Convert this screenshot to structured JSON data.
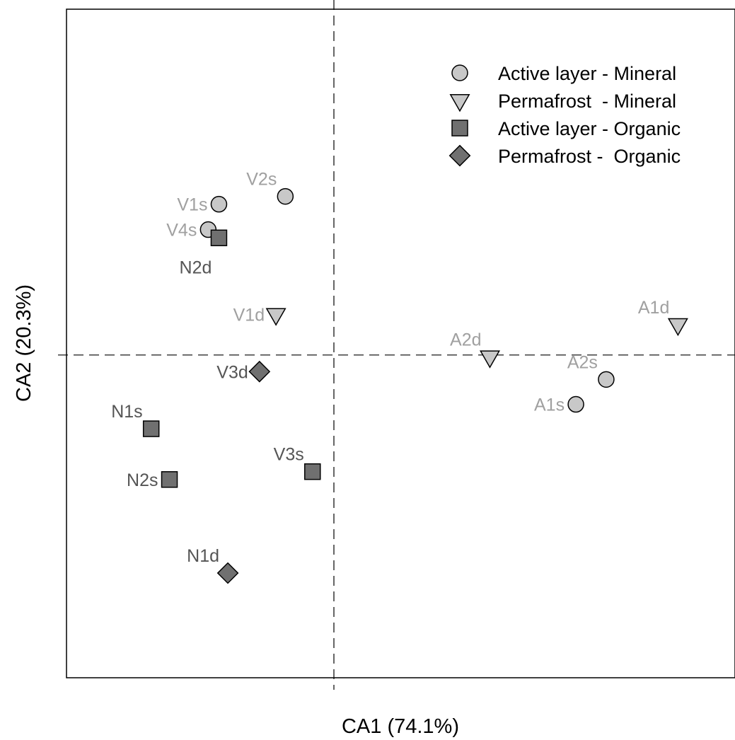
{
  "chart_data": {
    "type": "scatter",
    "title": "",
    "xlabel": "CA1 (74.1%)",
    "ylabel": "CA2 (20.3%)",
    "xlim": [
      -0.6,
      0.9
    ],
    "ylim": [
      -0.7,
      0.75
    ],
    "reference_lines": {
      "x": 0,
      "y": 0,
      "style": "dashed"
    },
    "grid": false,
    "legend_position": "top-right",
    "groups": [
      {
        "id": "al_min",
        "name": "Active layer - Mineral",
        "marker": "circle",
        "color": "#c8c8c8",
        "label_color": "#a0a0a0"
      },
      {
        "id": "pf_min",
        "name": "Permafrost  - Mineral",
        "marker": "triangle-down",
        "color": "#c8c8c8",
        "label_color": "#a0a0a0"
      },
      {
        "id": "al_org",
        "name": "Active layer - Organic",
        "marker": "square",
        "color": "#707070",
        "label_color": "#555555"
      },
      {
        "id": "pf_org",
        "name": "Permafrost -  Organic",
        "marker": "diamond",
        "color": "#707070",
        "label_color": "#555555"
      }
    ],
    "points": [
      {
        "label": "V1s",
        "group": "al_min",
        "x": -0.258,
        "y": 0.327,
        "label_pos": "left"
      },
      {
        "label": "V2s",
        "group": "al_min",
        "x": -0.109,
        "y": 0.344,
        "label_pos": "upper-left"
      },
      {
        "label": "V4s",
        "group": "al_min",
        "x": -0.282,
        "y": 0.272,
        "label_pos": "left"
      },
      {
        "label": "A1s",
        "group": "al_min",
        "x": 0.543,
        "y": -0.107,
        "label_pos": "left"
      },
      {
        "label": "A2s",
        "group": "al_min",
        "x": 0.611,
        "y": -0.053,
        "label_pos": "upper-left"
      },
      {
        "label": "V1d",
        "group": "pf_min",
        "x": -0.13,
        "y": 0.088,
        "label_pos": "left"
      },
      {
        "label": "A2d",
        "group": "pf_min",
        "x": 0.35,
        "y": -0.004,
        "label_pos": "upper-left"
      },
      {
        "label": "A1d",
        "group": "pf_min",
        "x": 0.772,
        "y": 0.066,
        "label_pos": "upper-left"
      },
      {
        "label": "N2d",
        "group": "al_org",
        "x": -0.258,
        "y": 0.254,
        "label_pos": "below"
      },
      {
        "label": "N1s",
        "group": "al_org",
        "x": -0.41,
        "y": -0.16,
        "label_pos": "upper-left"
      },
      {
        "label": "N2s",
        "group": "al_org",
        "x": -0.369,
        "y": -0.27,
        "label_pos": "left"
      },
      {
        "label": "V3s",
        "group": "al_org",
        "x": -0.048,
        "y": -0.253,
        "label_pos": "upper-left"
      },
      {
        "label": "V3d",
        "group": "pf_org",
        "x": -0.167,
        "y": -0.036,
        "label_pos": "left"
      },
      {
        "label": "N1d",
        "group": "pf_org",
        "x": -0.238,
        "y": -0.473,
        "label_pos": "upper-left"
      }
    ]
  }
}
